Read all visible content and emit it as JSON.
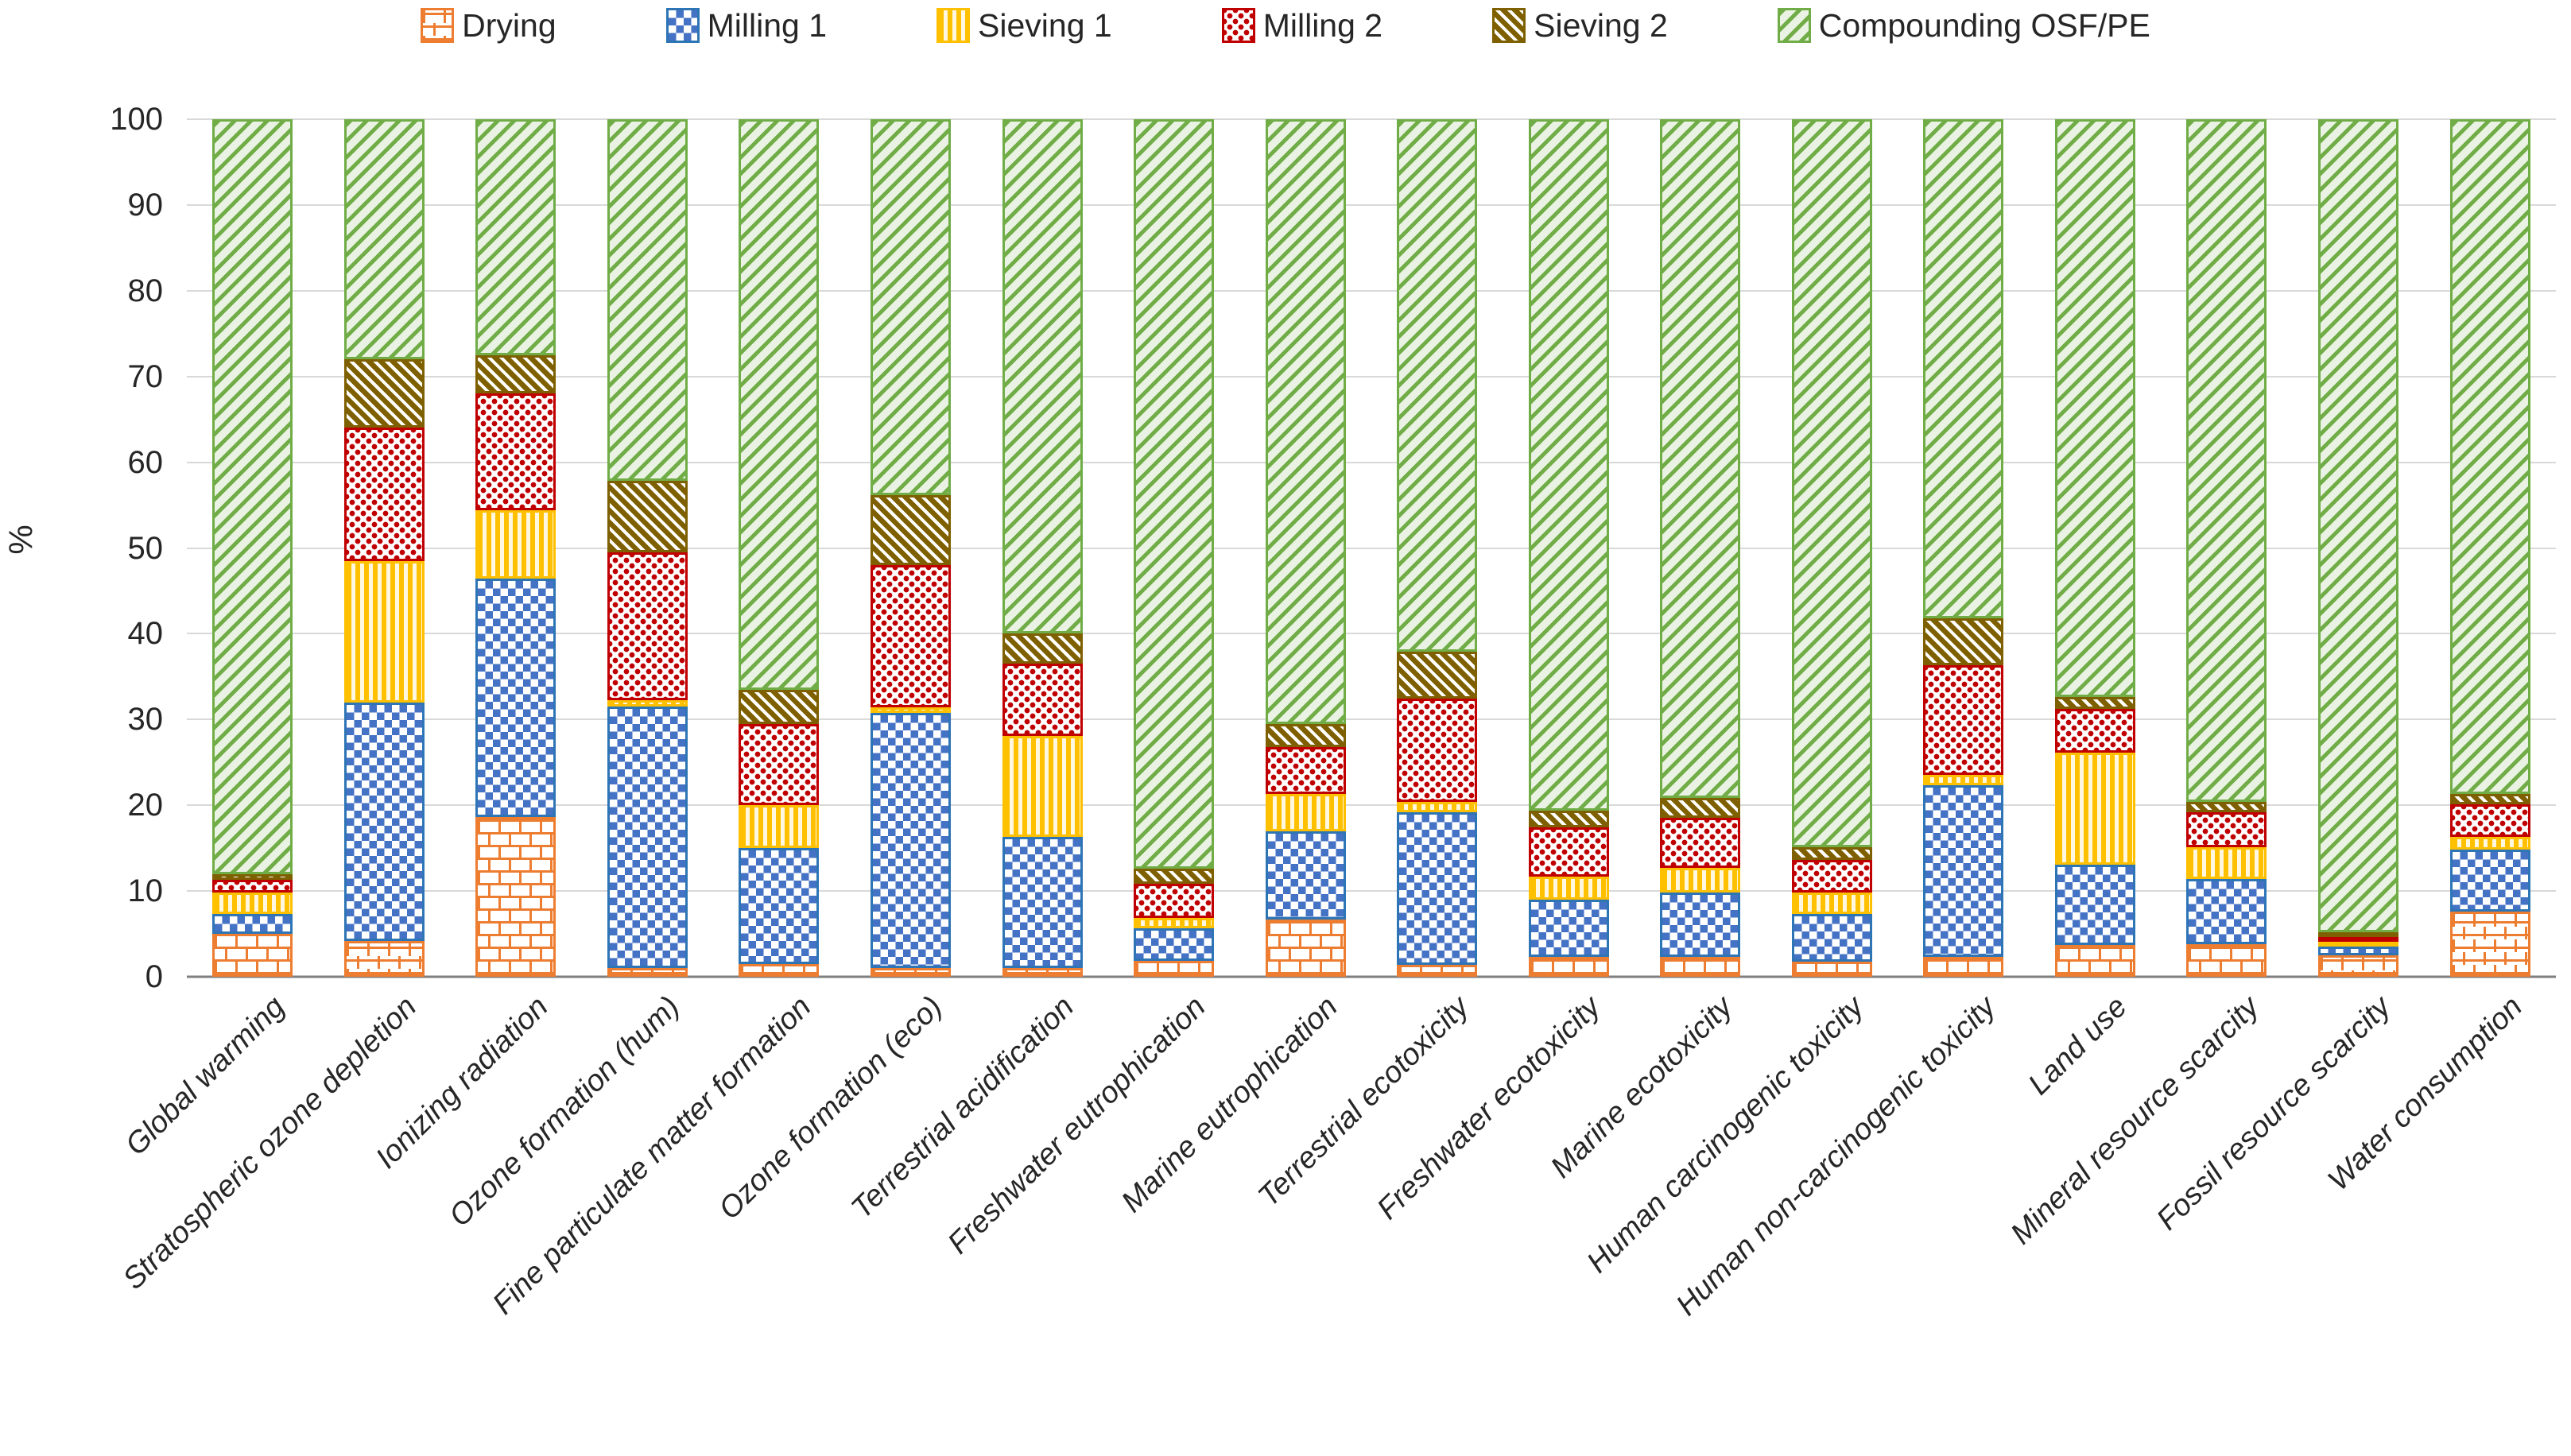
{
  "legend": {
    "items": [
      "Drying",
      "Milling 1",
      "Sieving 1",
      "Milling 2",
      "Sieving 2",
      "Compounding OSF/PE"
    ]
  },
  "chart_data": {
    "type": "bar",
    "stacked": true,
    "percent_stacked": true,
    "title": "",
    "xlabel": "",
    "ylabel": "%",
    "ylim": [
      0,
      100
    ],
    "yticks": [
      0,
      10,
      20,
      30,
      40,
      50,
      60,
      70,
      80,
      90,
      100
    ],
    "grid": true,
    "legend_position": "top",
    "categories": [
      "Global warming",
      "Stratospheric ozone depletion",
      "Ionizing radiation",
      "Ozone formation (hum)",
      "Fine particulate matter formation",
      "Ozone formation (eco)",
      "Terrestrial acidification",
      "Freshwater eutrophication",
      "Marine eutrophication",
      "Terrestrial ecotoxicity",
      "Freshwater ecotoxicity",
      "Marine ecotoxicity",
      "Human carcinogenic toxicity",
      "Human non-carcinogenic toxicity",
      "Land use",
      "Mineral resource scarcity",
      "Fossil resource scarcity",
      "Water consumption"
    ],
    "series": [
      {
        "name": "Drying",
        "pattern": "brick",
        "color": "#ED7D31",
        "values": [
          5.0,
          4.2,
          18.6,
          1.0,
          1.5,
          1.0,
          1.0,
          1.9,
          6.7,
          1.4,
          2.3,
          2.3,
          1.8,
          2.3,
          3.7,
          3.8,
          2.5,
          7.6
        ]
      },
      {
        "name": "Milling 1",
        "pattern": "checker",
        "color": "#2E75B6",
        "values": [
          2.3,
          27.8,
          27.8,
          30.5,
          13.5,
          29.8,
          15.3,
          3.8,
          10.3,
          17.8,
          6.7,
          7.5,
          5.5,
          20.0,
          9.4,
          7.6,
          1.0,
          7.2
        ]
      },
      {
        "name": "Sieving 1",
        "pattern": "vertical-stripes",
        "color": "#FFC000",
        "values": [
          2.5,
          16.5,
          8.0,
          0.8,
          5.0,
          0.6,
          11.8,
          1.2,
          4.3,
          1.2,
          2.7,
          2.9,
          2.5,
          1.2,
          13.0,
          3.7,
          0.6,
          1.5
        ]
      },
      {
        "name": "Milling 2",
        "pattern": "dots",
        "color": "#C00000",
        "values": [
          1.5,
          15.5,
          13.6,
          17.2,
          9.5,
          16.6,
          8.4,
          3.9,
          5.5,
          12.0,
          5.7,
          5.8,
          3.8,
          12.8,
          5.1,
          4.1,
          0.5,
          3.8
        ]
      },
      {
        "name": "Sieving 2",
        "pattern": "diagonal-down",
        "color": "#7F6000",
        "values": [
          0.7,
          8.0,
          4.5,
          8.3,
          4.0,
          8.2,
          3.5,
          1.8,
          2.7,
          5.5,
          2.0,
          2.4,
          1.5,
          5.5,
          1.4,
          1.2,
          0.3,
          1.2
        ]
      },
      {
        "name": "Compounding OSF/PE",
        "pattern": "diagonal-up",
        "color": "#70AD47",
        "values": [
          88.0,
          28.0,
          27.5,
          42.2,
          66.5,
          43.8,
          60.0,
          87.4,
          70.5,
          62.1,
          80.6,
          79.1,
          84.9,
          58.2,
          67.4,
          79.6,
          95.1,
          78.7
        ]
      }
    ]
  }
}
